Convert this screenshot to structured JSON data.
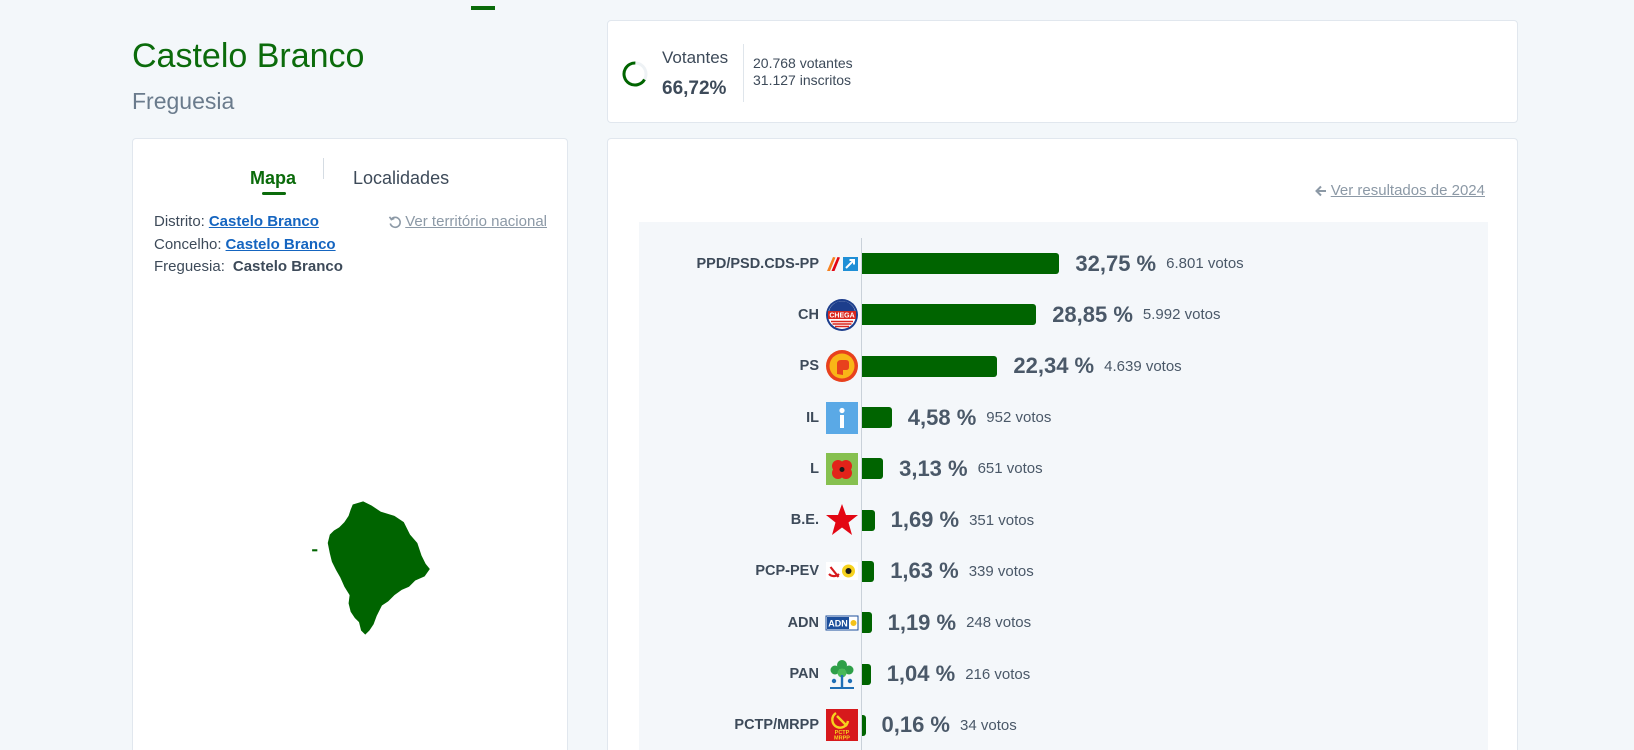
{
  "header": {
    "title": "Castelo Branco",
    "subtitle": "Freguesia"
  },
  "map_panel": {
    "tabs": [
      {
        "label": "Mapa",
        "active": true
      },
      {
        "label": "Localidades",
        "active": false
      }
    ],
    "distrito_label": "Distrito:",
    "distrito_value": "Castelo Branco",
    "concelho_label": "Concelho:",
    "concelho_value": "Castelo Branco",
    "freguesia_label": "Freguesia:",
    "freguesia_value": "Castelo Branco",
    "national_link": "Ver território nacional",
    "map_fill": "#006400"
  },
  "turnout": {
    "label": "Votantes",
    "percent_text": "66,72%",
    "percent": 66.72,
    "voters": "20.768 votantes",
    "registered": "31.127 inscritos"
  },
  "results": {
    "previous_link": "Ver resultados de 2024"
  },
  "colors": {
    "brand_green": "#006400",
    "link_blue": "#1565c0",
    "muted_text": "#8c99a6",
    "text": "#3d4a59"
  },
  "logo_lettering": {
    "chega": "CHEGA",
    "adn": "ADN",
    "pctp_line1": "PCTP",
    "pctp_line2": "MRPP"
  },
  "chart_data": {
    "type": "bar",
    "orientation": "horizontal",
    "categories": [
      "PPD/PSD.CDS-PP",
      "CH",
      "PS",
      "IL",
      "L",
      "B.E.",
      "PCP-PEV",
      "ADN",
      "PAN",
      "PCTP/MRPP"
    ],
    "values": [
      32.75,
      28.85,
      22.34,
      4.58,
      3.13,
      1.69,
      1.63,
      1.19,
      1.04,
      0.16
    ],
    "value_labels": [
      "32,75 %",
      "28,85 %",
      "22,34 %",
      "4,58 %",
      "3,13 %",
      "1,69 %",
      "1,63 %",
      "1,19 %",
      "1,04 %",
      "0,16 %"
    ],
    "vote_labels": [
      "6.801 votos",
      "5.992 votos",
      "4.639 votos",
      "952 votos",
      "651 votos",
      "351 votos",
      "339 votos",
      "248 votos",
      "216 votos",
      "34 votos"
    ],
    "logos": [
      "ppd-psd-cds-pp-logo",
      "chega-logo",
      "ps-logo",
      "il-logo",
      "livre-logo",
      "be-logo",
      "pcp-pev-logo",
      "adn-logo",
      "pan-logo",
      "pctp-mrpp-logo"
    ]
  }
}
